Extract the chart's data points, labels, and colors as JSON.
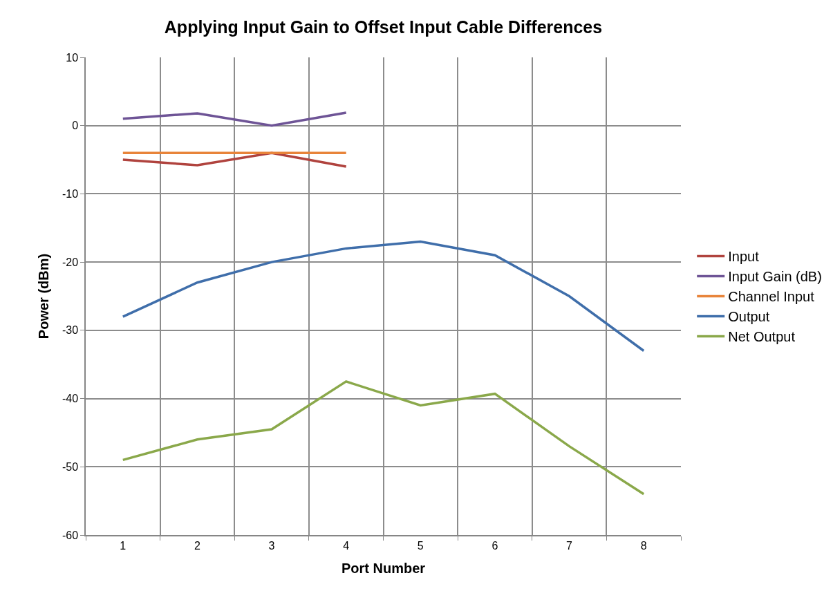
{
  "chart_data": {
    "type": "line",
    "title": "Applying Input Gain to Offset Input Cable Differences",
    "xlabel": "Port Number",
    "ylabel": "Power (dBm)",
    "categories": [
      "1",
      "2",
      "3",
      "4",
      "5",
      "6",
      "7",
      "8"
    ],
    "series": [
      {
        "name": "Input",
        "color": "#b0433e",
        "values": [
          -5,
          -5.8,
          -4,
          -6,
          null,
          null,
          null,
          null
        ]
      },
      {
        "name": "Input Gain (dB)",
        "color": "#6e5496",
        "values": [
          1,
          1.8,
          0,
          1.9,
          null,
          null,
          null,
          null
        ]
      },
      {
        "name": "Channel Input",
        "color": "#e8843a",
        "values": [
          -4,
          -4,
          -4,
          -4,
          null,
          null,
          null,
          null
        ]
      },
      {
        "name": "Output",
        "color": "#3f6eaa",
        "values": [
          -28,
          -23,
          -20,
          -18,
          -17,
          -19,
          -25,
          -33
        ]
      },
      {
        "name": "Net Output",
        "color": "#8aa84a",
        "values": [
          -49,
          -46,
          -44.5,
          -37.5,
          -41,
          -39.3,
          -47,
          -54
        ]
      }
    ],
    "ylim": [
      -60,
      10
    ],
    "yticks": [
      -60,
      -50,
      -40,
      -30,
      -20,
      -10,
      0,
      10
    ],
    "grid": true,
    "legend": "right"
  }
}
